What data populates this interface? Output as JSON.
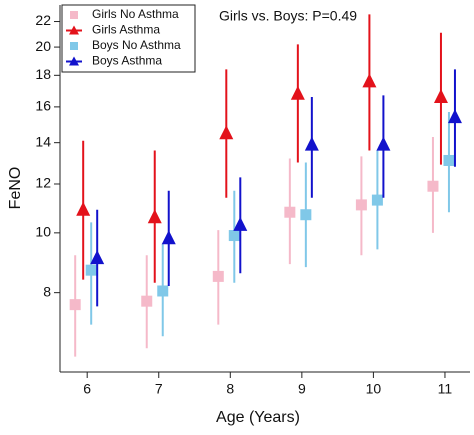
{
  "chart_data": {
    "type": "errorbar",
    "annotation": "Girls vs. Boys: P=0.49",
    "x_label": "Age (Years)",
    "y_label": "FeNO",
    "x": [
      6,
      7,
      8,
      9,
      10,
      11
    ],
    "xlim": [
      5.62,
      11.35
    ],
    "xticks": [
      6,
      7,
      8,
      9,
      10,
      11
    ],
    "ylim": [
      5.95,
      23.4
    ],
    "yticks": [
      8,
      10,
      12,
      14,
      16,
      18,
      20,
      22
    ],
    "log_y": true,
    "legend": "top-left",
    "series": [
      {
        "name": "Girls No Asthma",
        "color": "#f5b9c9",
        "marker": "square",
        "values": [
          7.65,
          7.75,
          8.5,
          10.8,
          11.1,
          11.9
        ],
        "low": [
          6.3,
          6.5,
          7.1,
          8.9,
          9.2,
          10.0
        ],
        "high": [
          9.2,
          9.2,
          10.1,
          13.2,
          13.3,
          14.3
        ]
      },
      {
        "name": "Girls Asthma",
        "color": "#e3121b",
        "marker": "triangle",
        "values": [
          10.9,
          10.6,
          14.5,
          16.8,
          17.6,
          16.6
        ],
        "low": [
          8.4,
          8.3,
          11.4,
          13.0,
          13.6,
          12.9
        ],
        "high": [
          14.1,
          13.6,
          18.4,
          20.2,
          22.6,
          21.1
        ]
      },
      {
        "name": "Boys No Asthma",
        "color": "#80c8e8",
        "marker": "square",
        "values": [
          8.7,
          8.05,
          9.9,
          10.7,
          11.3,
          13.1
        ],
        "low": [
          7.1,
          6.8,
          8.3,
          8.8,
          9.4,
          10.8
        ],
        "high": [
          10.4,
          9.6,
          11.7,
          13.0,
          13.6,
          15.7
        ]
      },
      {
        "name": "Boys Asthma",
        "color": "#1212cc",
        "marker": "triangle",
        "values": [
          9.1,
          9.8,
          10.3,
          13.9,
          13.9,
          15.4
        ],
        "low": [
          7.6,
          8.2,
          8.6,
          11.4,
          11.4,
          12.8
        ],
        "high": [
          10.9,
          11.7,
          12.3,
          16.6,
          16.7,
          18.4
        ]
      }
    ]
  }
}
